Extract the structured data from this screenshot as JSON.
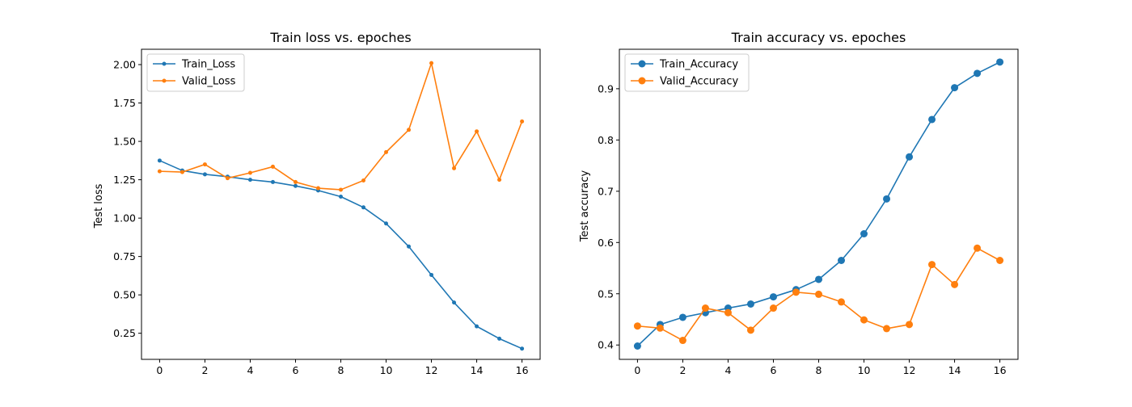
{
  "figure": {
    "background": "#ffffff"
  },
  "colors": {
    "series_blue": "#1f77b4",
    "series_orange": "#ff7f0e",
    "axis": "#000000",
    "legend_border": "#cccccc"
  },
  "chart_data": [
    {
      "type": "line",
      "title": "Train loss vs. epoches",
      "xlabel": "",
      "ylabel": "Test loss",
      "xlim": [
        -0.8,
        16.8
      ],
      "ylim": [
        0.08,
        2.1
      ],
      "xticks": [
        0,
        2,
        4,
        6,
        8,
        10,
        12,
        14,
        16
      ],
      "xtick_labels": [
        "0",
        "2",
        "4",
        "6",
        "8",
        "10",
        "12",
        "14",
        "16"
      ],
      "yticks": [
        0.25,
        0.5,
        0.75,
        1.0,
        1.25,
        1.5,
        1.75,
        2.0
      ],
      "ytick_labels": [
        "0.25",
        "0.50",
        "0.75",
        "1.00",
        "1.25",
        "1.50",
        "1.75",
        "2.00"
      ],
      "grid": false,
      "legend_position": "upper-left",
      "marker": "small-dot",
      "x": [
        0,
        1,
        2,
        3,
        4,
        5,
        6,
        7,
        8,
        9,
        10,
        11,
        12,
        13,
        14,
        15,
        16
      ],
      "series": [
        {
          "name": "Train_Loss",
          "color": "#1f77b4",
          "values": [
            1.375,
            1.31,
            1.285,
            1.27,
            1.25,
            1.235,
            1.21,
            1.18,
            1.14,
            1.07,
            0.965,
            0.815,
            0.63,
            0.45,
            0.295,
            0.215,
            0.15
          ]
        },
        {
          "name": "Valid_Loss",
          "color": "#ff7f0e",
          "values": [
            1.305,
            1.3,
            1.35,
            1.26,
            1.295,
            1.335,
            1.235,
            1.195,
            1.185,
            1.245,
            1.43,
            1.575,
            2.01,
            1.325,
            1.565,
            1.25,
            1.63
          ]
        }
      ]
    },
    {
      "type": "line",
      "title": "Train accuracy vs. epoches",
      "xlabel": "",
      "ylabel": "Test accuracy",
      "xlim": [
        -0.8,
        16.8
      ],
      "ylim": [
        0.372,
        0.977
      ],
      "xticks": [
        0,
        2,
        4,
        6,
        8,
        10,
        12,
        14,
        16
      ],
      "xtick_labels": [
        "0",
        "2",
        "4",
        "6",
        "8",
        "10",
        "12",
        "14",
        "16"
      ],
      "yticks": [
        0.4,
        0.5,
        0.6,
        0.7,
        0.8,
        0.9
      ],
      "ytick_labels": [
        "0.4",
        "0.5",
        "0.6",
        "0.7",
        "0.8",
        "0.9"
      ],
      "grid": false,
      "legend_position": "upper-left",
      "marker": "large-dot",
      "x": [
        0,
        1,
        2,
        3,
        4,
        5,
        6,
        7,
        8,
        9,
        10,
        11,
        12,
        13,
        14,
        15,
        16
      ],
      "series": [
        {
          "name": "Train_Accuracy",
          "color": "#1f77b4",
          "values": [
            0.398,
            0.44,
            0.454,
            0.463,
            0.472,
            0.48,
            0.494,
            0.508,
            0.528,
            0.565,
            0.617,
            0.685,
            0.767,
            0.84,
            0.902,
            0.93,
            0.952
          ]
        },
        {
          "name": "Valid_Accuracy",
          "color": "#ff7f0e",
          "values": [
            0.437,
            0.433,
            0.409,
            0.472,
            0.463,
            0.429,
            0.472,
            0.503,
            0.499,
            0.484,
            0.449,
            0.432,
            0.44,
            0.557,
            0.518,
            0.589,
            0.565
          ]
        }
      ]
    }
  ]
}
